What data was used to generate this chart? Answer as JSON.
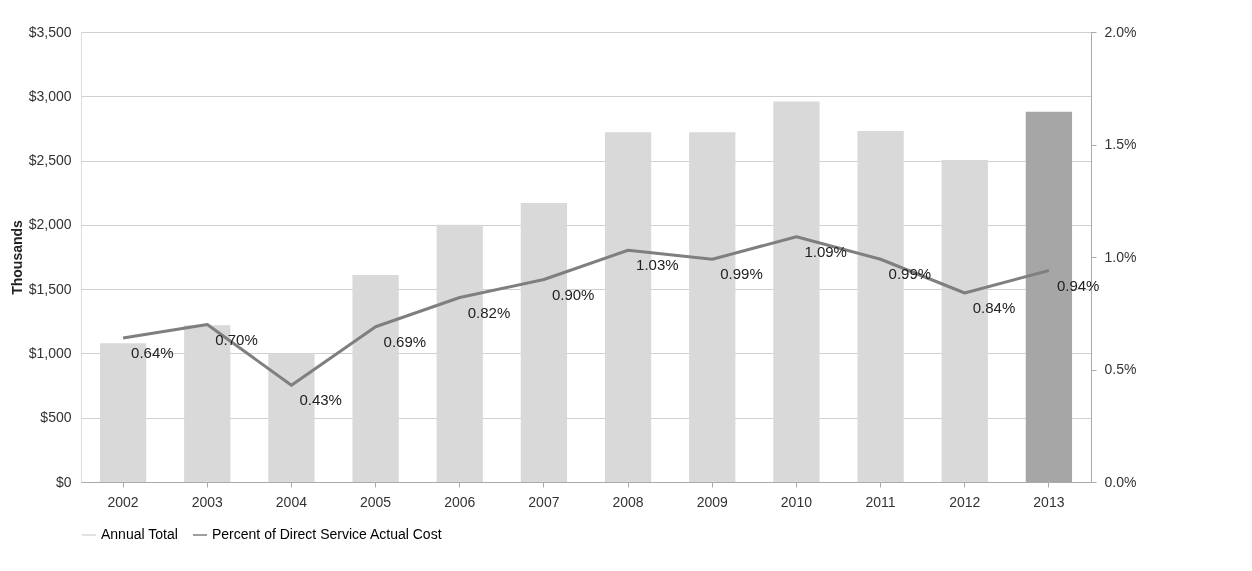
{
  "chart_data": {
    "type": "bar",
    "categories": [
      "2002",
      "2003",
      "2004",
      "2005",
      "2006",
      "2007",
      "2008",
      "2009",
      "2010",
      "2011",
      "2012",
      "2013"
    ],
    "series": [
      {
        "name": "Annual Total",
        "color": "#d9d9d9",
        "colors": [
          "#d9d9d9",
          "#d9d9d9",
          "#d9d9d9",
          "#d9d9d9",
          "#d9d9d9",
          "#d9d9d9",
          "#d9d9d9",
          "#d9d9d9",
          "#d9d9d9",
          "#d9d9d9",
          "#d9d9d9",
          "#a6a6a6"
        ],
        "values": [
          1080,
          1220,
          1000,
          1610,
          2000,
          2170,
          2720,
          2720,
          2960,
          2730,
          2505,
          2880
        ]
      },
      {
        "name": "Percent of Direct Service Actual Cost",
        "type": "line",
        "axis": "y2",
        "color": "#7f7f7f",
        "values": [
          0.64,
          0.7,
          0.43,
          0.69,
          0.82,
          0.9,
          1.03,
          0.99,
          1.09,
          0.99,
          0.84,
          0.94
        ],
        "value_labels": [
          "0.64%",
          "0.70%",
          "0.43%",
          "0.69%",
          "0.82%",
          "0.90%",
          "1.03%",
          "0.99%",
          "1.09%",
          "0.99%",
          "0.84%",
          "0.94%"
        ]
      }
    ],
    "ylabel": "Thousands",
    "ylim": [
      0,
      3500
    ],
    "yticks": [
      {
        "value": 0,
        "label": "$0"
      },
      {
        "value": 500,
        "label": "$500"
      },
      {
        "value": 1000,
        "label": "$1,000"
      },
      {
        "value": 1500,
        "label": "$1,500"
      },
      {
        "value": 2000,
        "label": "$2,000"
      },
      {
        "value": 2500,
        "label": "$2,500"
      },
      {
        "value": 3000,
        "label": "$3,000"
      },
      {
        "value": 3500,
        "label": "$3,500"
      }
    ],
    "y2lim": [
      0,
      2
    ],
    "y2ticks": [
      {
        "value": 0,
        "label": "0.0%"
      },
      {
        "value": 0.5,
        "label": "0.5%"
      },
      {
        "value": 1,
        "label": "1.0%"
      },
      {
        "value": 1.5,
        "label": "1.5%"
      },
      {
        "value": 2,
        "label": "2.0%"
      }
    ],
    "grid": "y",
    "legend": "bottom"
  }
}
